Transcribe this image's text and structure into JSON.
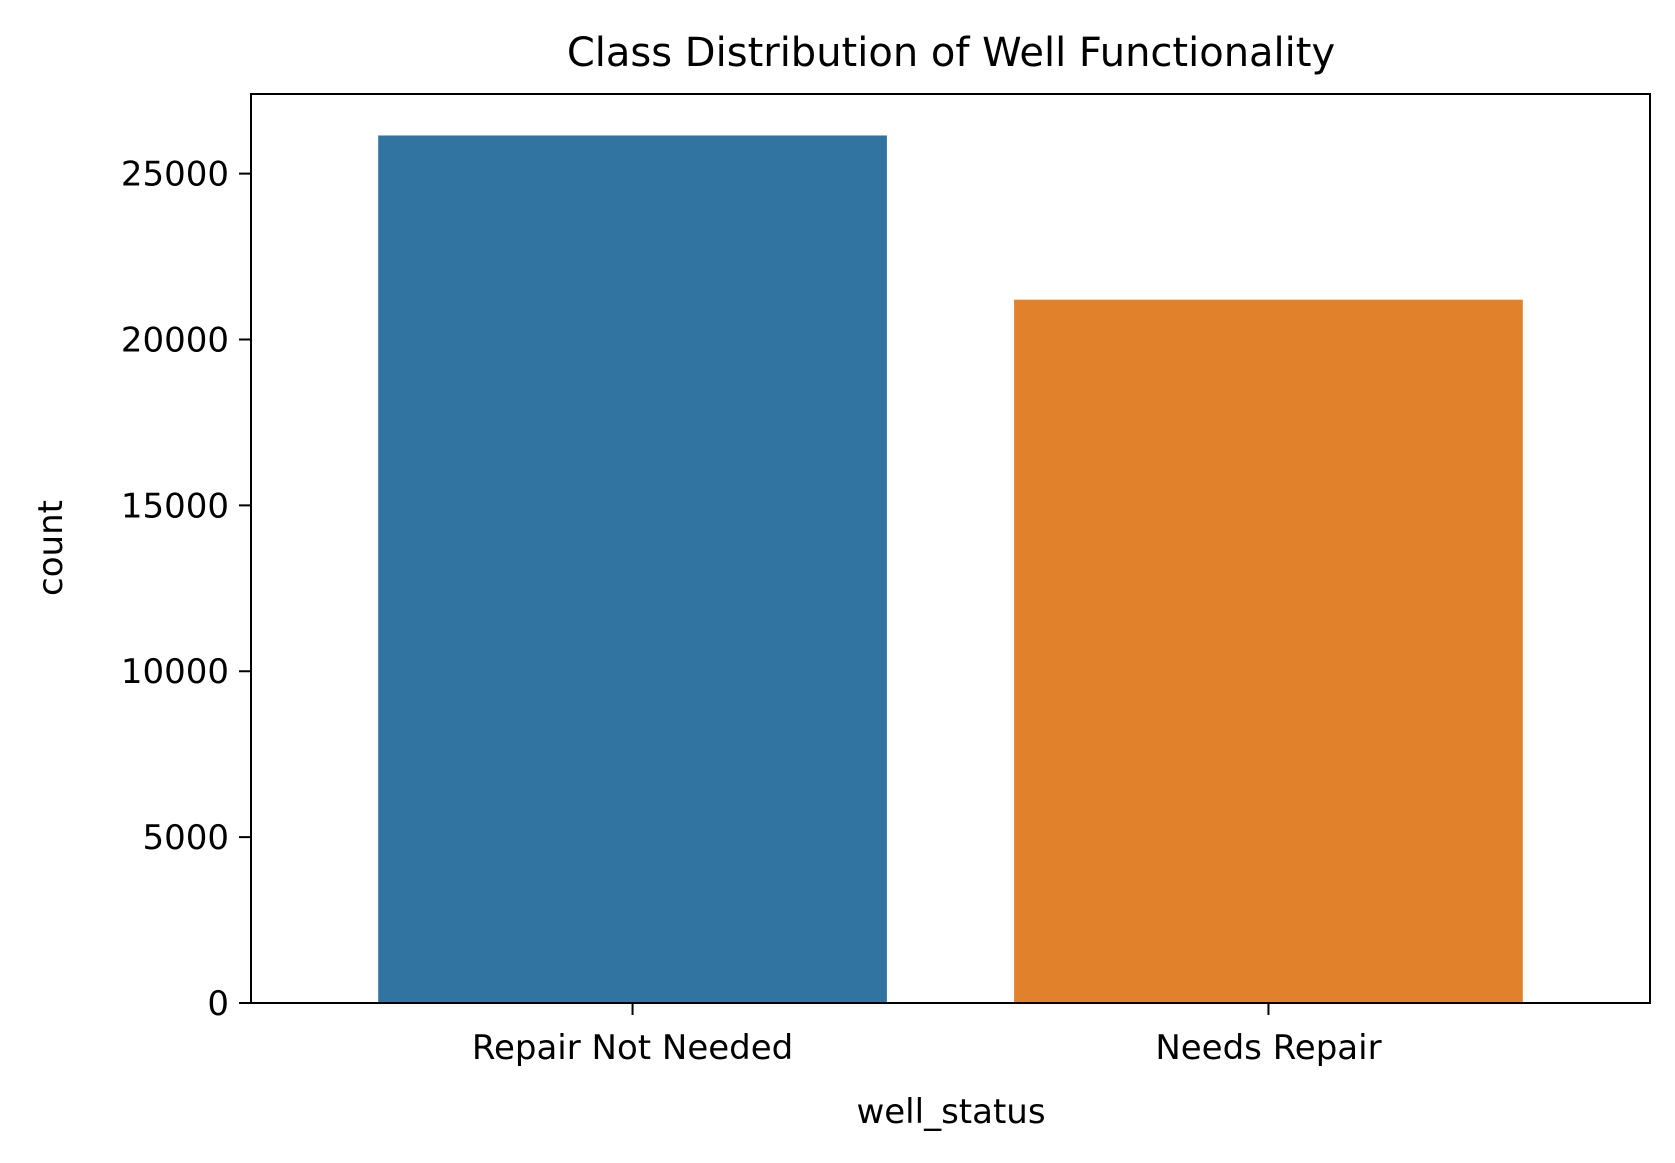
{
  "chart_data": {
    "type": "bar",
    "title": "Class Distribution of Well Functionality",
    "xlabel": "well_status",
    "ylabel": "count",
    "categories": [
      "Repair Not Needed",
      "Needs Repair"
    ],
    "values": [
      26150,
      21200
    ],
    "colors": [
      "#3274a1",
      "#e1812c"
    ],
    "ylim": [
      0,
      27400
    ],
    "yticks": [
      0,
      5000,
      10000,
      15000,
      20000,
      25000
    ],
    "grid": false,
    "legend": "none"
  }
}
